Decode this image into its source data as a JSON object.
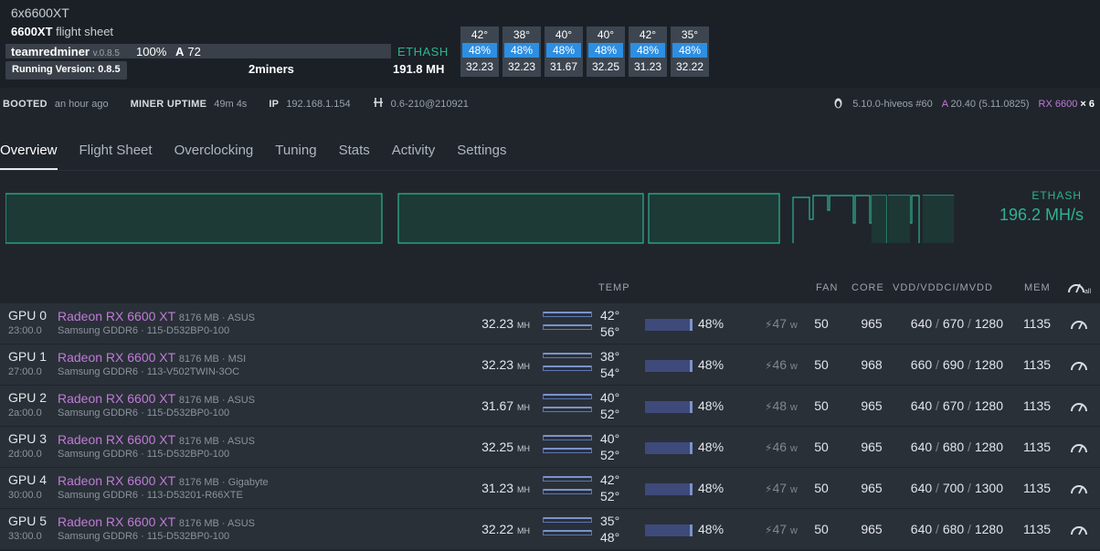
{
  "header": {
    "rig_name": "6x6600XT",
    "flight_sheet_name": "6600XT",
    "flight_sheet_suffix": "flight sheet",
    "miner": "teamredminer",
    "miner_version": "v.0.8.5",
    "accepted_pct": "100%",
    "accepted_label": "A",
    "accepted_count": "72",
    "running_version": "Running Version: 0.8.5",
    "pool": "2miners",
    "algo": "ETHASH",
    "total_hash": "191.8 MH"
  },
  "gpu_tiles": [
    {
      "temp": "42°",
      "fan": "48%",
      "hash": "32.23"
    },
    {
      "temp": "38°",
      "fan": "48%",
      "hash": "32.23"
    },
    {
      "temp": "40°",
      "fan": "48%",
      "hash": "31.67"
    },
    {
      "temp": "40°",
      "fan": "48%",
      "hash": "32.25"
    },
    {
      "temp": "42°",
      "fan": "48%",
      "hash": "31.23"
    },
    {
      "temp": "35°",
      "fan": "48%",
      "hash": "32.22"
    }
  ],
  "info": {
    "booted_label": "BOOTED",
    "booted_value": "an hour ago",
    "uptime_label": "MINER UPTIME",
    "uptime_value": "49m 4s",
    "ip_label": "IP",
    "ip_value": "192.168.1.154",
    "hive_version": "0.6-210@210921",
    "kernel": "5.10.0-hiveos #60",
    "driver_label": "A",
    "driver": "20.40 (5.11.0825)",
    "gpu_model": "RX 6600",
    "gpu_count": "× 6"
  },
  "tabs": [
    "Overview",
    "Flight Sheet",
    "Overclocking",
    "Tuning",
    "Stats",
    "Activity",
    "Settings"
  ],
  "graph": {
    "algo": "ETHASH",
    "hashrate": "196.2 MH/s",
    "line_color": "#2fb38e"
  },
  "table_headers": {
    "temp": "TEMP",
    "fan": "FAN",
    "core": "CORE",
    "vdd": "VDD/VDDCI/MVDD",
    "mem": "MEM"
  },
  "gpus": [
    {
      "id": "GPU 0",
      "bus": "23:00.0",
      "model": "Radeon RX 6600 XT",
      "details": "8176 MB · ASUS",
      "memory": "Samsung GDDR6 · 115-D532BP0-100",
      "hash": "32.23",
      "hash_unit": "MH",
      "core_temp": "42°",
      "mem_temp": "56°",
      "fan_pct": "48%",
      "power": "47",
      "power_unit": "w",
      "fan": "50",
      "core": "965",
      "vdd": "640",
      "vddci": "670",
      "mvdd": "1280",
      "mem": "1135"
    },
    {
      "id": "GPU 1",
      "bus": "27:00.0",
      "model": "Radeon RX 6600 XT",
      "details": "8176 MB · MSI",
      "memory": "Samsung GDDR6 · 113-V502TWIN-3OC",
      "hash": "32.23",
      "hash_unit": "MH",
      "core_temp": "38°",
      "mem_temp": "54°",
      "fan_pct": "48%",
      "power": "46",
      "power_unit": "w",
      "fan": "50",
      "core": "968",
      "vdd": "660",
      "vddci": "690",
      "mvdd": "1280",
      "mem": "1135"
    },
    {
      "id": "GPU 2",
      "bus": "2a:00.0",
      "model": "Radeon RX 6600 XT",
      "details": "8176 MB · ASUS",
      "memory": "Samsung GDDR6 · 115-D532BP0-100",
      "hash": "31.67",
      "hash_unit": "MH",
      "core_temp": "40°",
      "mem_temp": "52°",
      "fan_pct": "48%",
      "power": "48",
      "power_unit": "w",
      "fan": "50",
      "core": "965",
      "vdd": "640",
      "vddci": "670",
      "mvdd": "1280",
      "mem": "1135"
    },
    {
      "id": "GPU 3",
      "bus": "2d:00.0",
      "model": "Radeon RX 6600 XT",
      "details": "8176 MB · ASUS",
      "memory": "Samsung GDDR6 · 115-D532BP0-100",
      "hash": "32.25",
      "hash_unit": "MH",
      "core_temp": "40°",
      "mem_temp": "52°",
      "fan_pct": "48%",
      "power": "46",
      "power_unit": "w",
      "fan": "50",
      "core": "965",
      "vdd": "640",
      "vddci": "680",
      "mvdd": "1280",
      "mem": "1135"
    },
    {
      "id": "GPU 4",
      "bus": "30:00.0",
      "model": "Radeon RX 6600 XT",
      "details": "8176 MB · Gigabyte",
      "memory": "Samsung GDDR6 · 113-D53201-R66XTE",
      "hash": "31.23",
      "hash_unit": "MH",
      "core_temp": "42°",
      "mem_temp": "52°",
      "fan_pct": "48%",
      "power": "47",
      "power_unit": "w",
      "fan": "50",
      "core": "965",
      "vdd": "640",
      "vddci": "700",
      "mvdd": "1300",
      "mem": "1135"
    },
    {
      "id": "GPU 5",
      "bus": "33:00.0",
      "model": "Radeon RX 6600 XT",
      "details": "8176 MB · ASUS",
      "memory": "Samsung GDDR6 · 115-D532BP0-100",
      "hash": "32.22",
      "hash_unit": "MH",
      "core_temp": "35°",
      "mem_temp": "48°",
      "fan_pct": "48%",
      "power": "47",
      "power_unit": "w",
      "fan": "50",
      "core": "965",
      "vdd": "640",
      "vddci": "680",
      "mvdd": "1280",
      "mem": "1135"
    }
  ],
  "icons": {
    "linux": "penguin-icon",
    "hive": "hive-icon",
    "power": "bolt-icon",
    "oc": "speedometer-icon"
  }
}
